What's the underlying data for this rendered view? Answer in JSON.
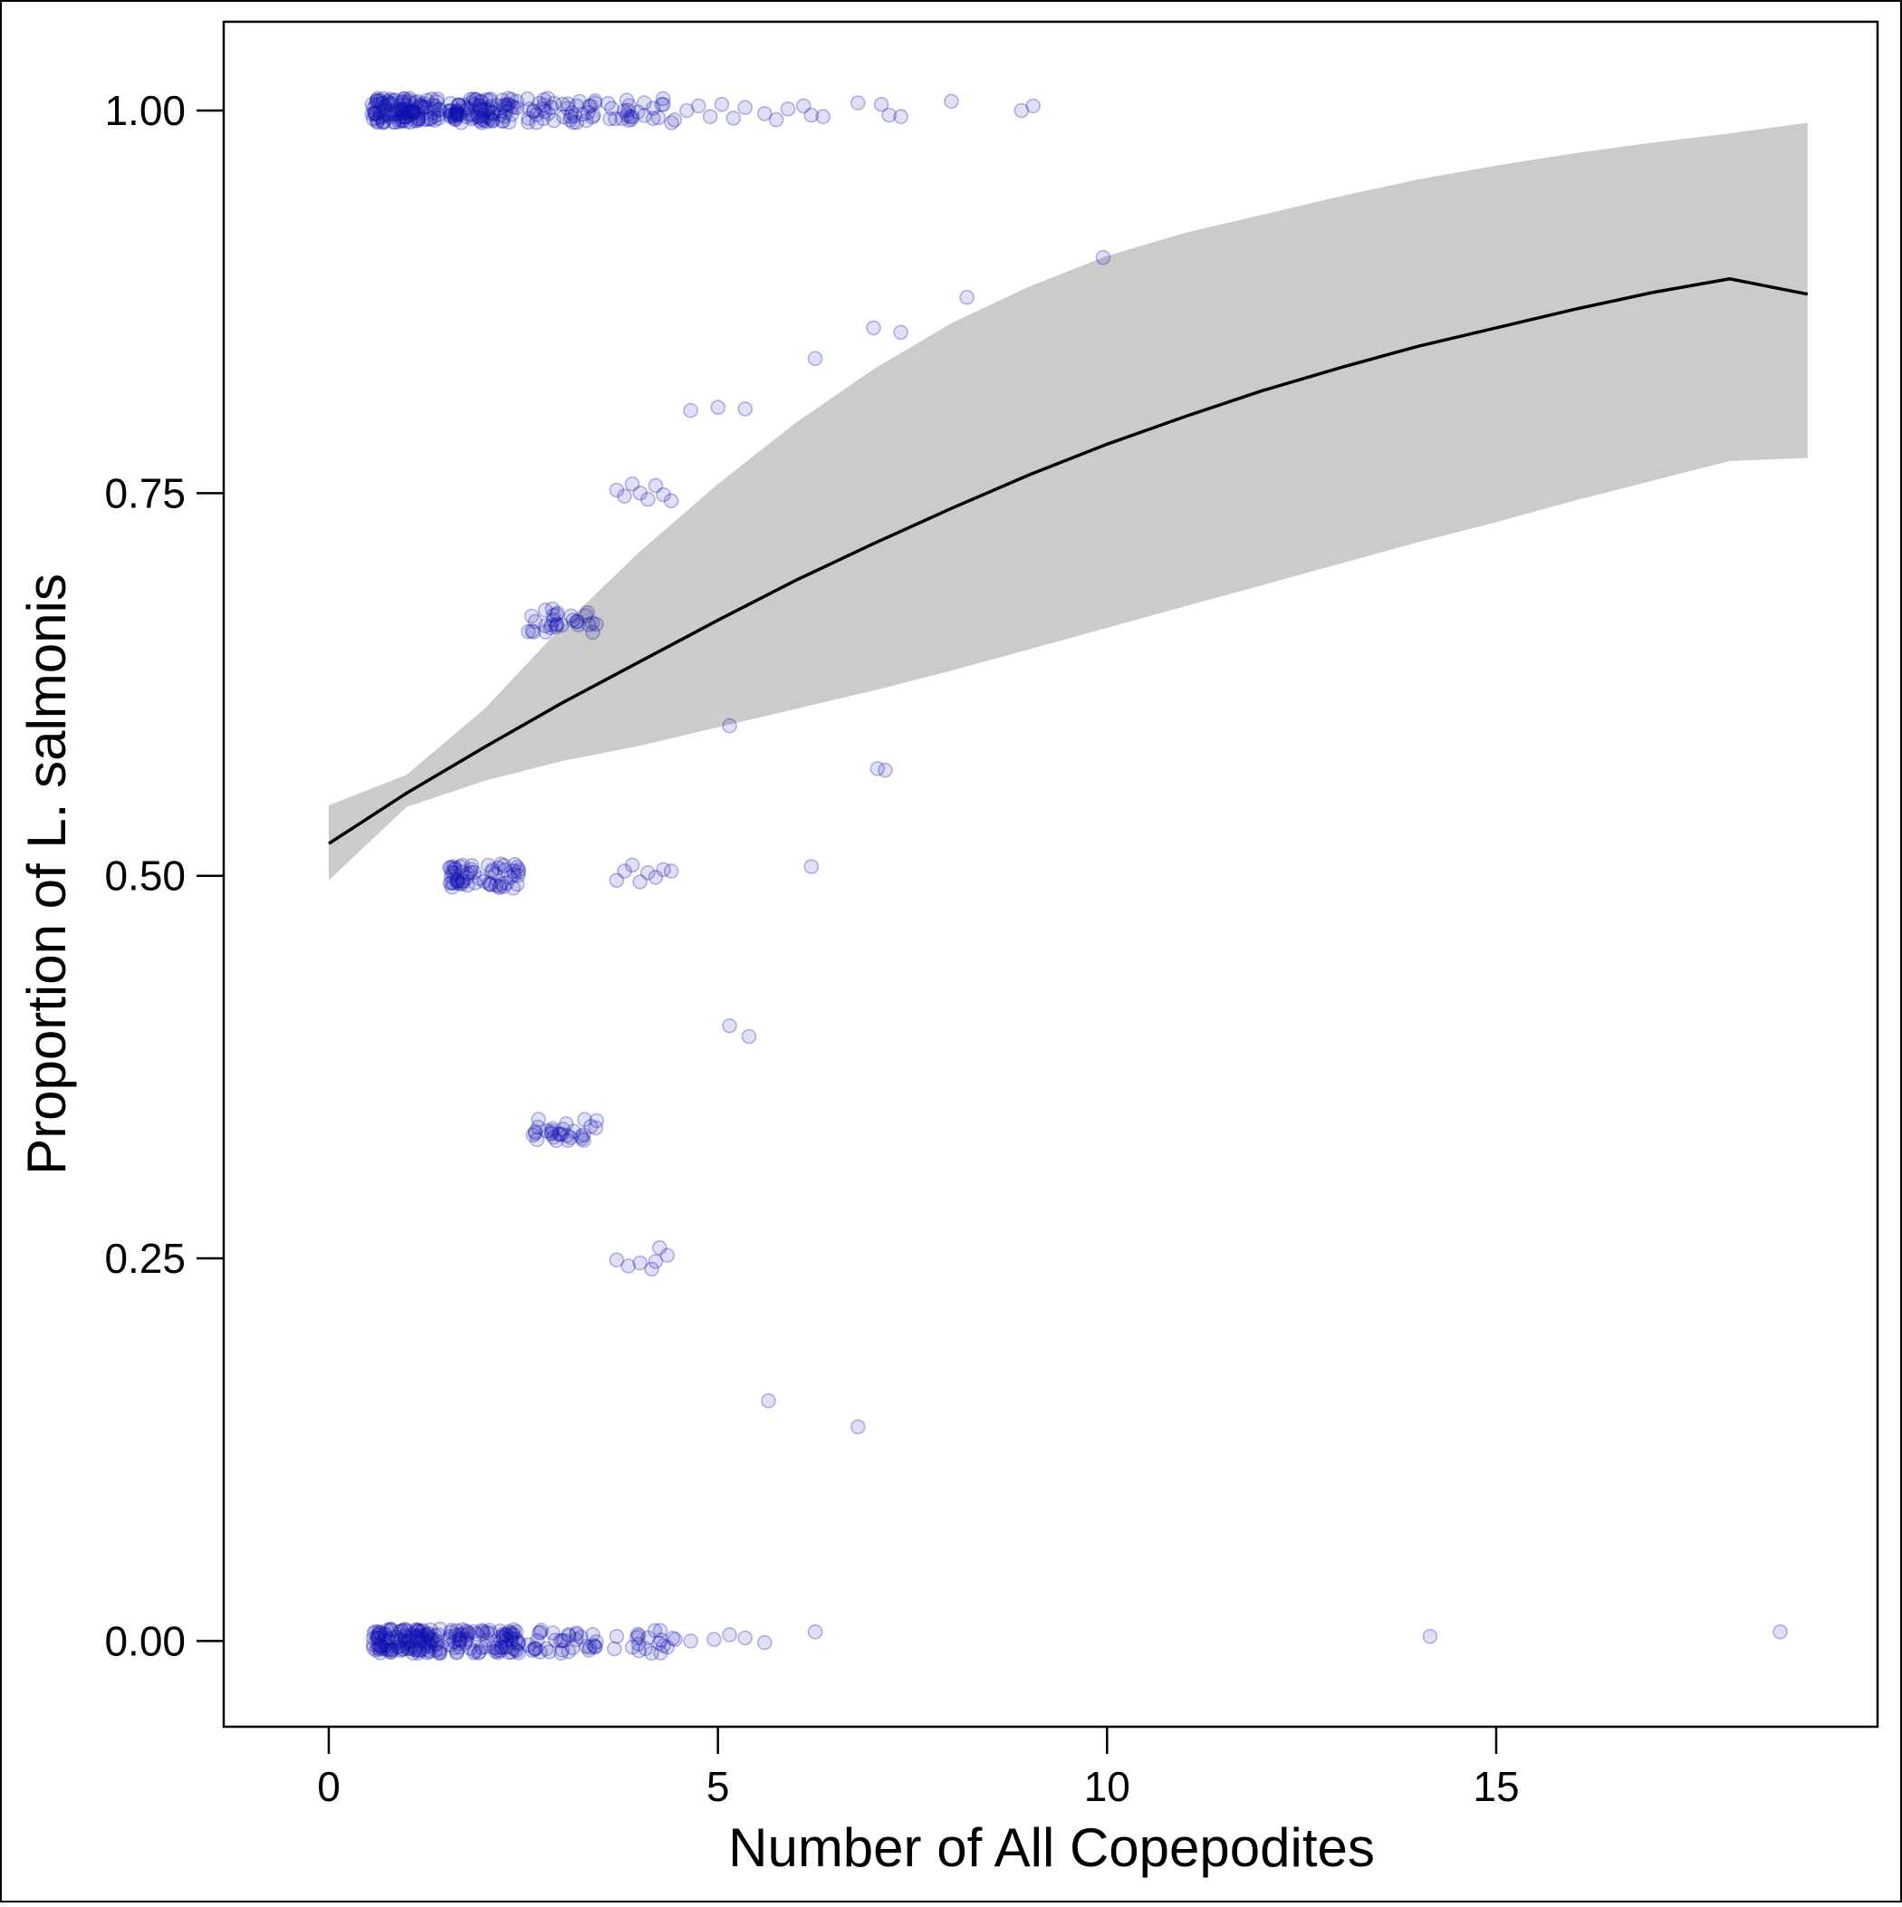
{
  "chart_data": {
    "type": "scatter",
    "title": "",
    "xlabel": "Number of All Copepodites",
    "ylabel": "Proportion of L. salmonis",
    "xlim": [
      -1.35,
      19.9
    ],
    "ylim": [
      -0.056,
      1.058
    ],
    "x_ticks": [
      0,
      5,
      10,
      15
    ],
    "x_tick_labels": [
      "0",
      "5",
      "10",
      "15"
    ],
    "y_ticks": [
      0,
      0.25,
      0.5,
      0.75,
      1
    ],
    "y_tick_labels": [
      "0.00",
      "0.25",
      "0.50",
      "0.75",
      "1.00"
    ],
    "grid": false,
    "legend": "none",
    "point_color": "#1010b0",
    "ribbon_color": "#cbcbcb",
    "line_color": "#000000",
    "fit_line": {
      "x": [
        0,
        1,
        2,
        3,
        4,
        5,
        6,
        7,
        8,
        9,
        10,
        11,
        12,
        13,
        14,
        15,
        16,
        17,
        18,
        19
      ],
      "y": [
        0.521,
        0.554,
        0.584,
        0.613,
        0.64,
        0.667,
        0.693,
        0.717,
        0.74,
        0.762,
        0.782,
        0.8,
        0.817,
        0.832,
        0.846,
        0.858,
        0.87,
        0.881,
        0.89,
        0.88
      ],
      "y_lower": [
        0.497,
        0.545,
        0.562,
        0.575,
        0.585,
        0.597,
        0.609,
        0.621,
        0.634,
        0.648,
        0.662,
        0.676,
        0.69,
        0.704,
        0.718,
        0.731,
        0.745,
        0.758,
        0.771,
        0.773
      ],
      "y_upper": [
        0.546,
        0.566,
        0.609,
        0.663,
        0.712,
        0.756,
        0.796,
        0.831,
        0.861,
        0.885,
        0.905,
        0.92,
        0.932,
        0.944,
        0.955,
        0.964,
        0.972,
        0.979,
        0.985,
        0.992
      ]
    },
    "point_groups": [
      {
        "y": 1.0,
        "x_from": 0.55,
        "x_to": 1.45,
        "count": 120
      },
      {
        "y": 1.0,
        "x_from": 1.55,
        "x_to": 2.45,
        "count": 90
      },
      {
        "y": 1.0,
        "x_from": 2.55,
        "x_to": 3.45,
        "count": 40
      },
      {
        "y": 1.0,
        "x_from": 3.55,
        "x_to": 4.45,
        "count": 25
      },
      {
        "y": 0.0,
        "x_from": 0.55,
        "x_to": 1.45,
        "count": 120
      },
      {
        "y": 0.0,
        "x_from": 1.55,
        "x_to": 2.45,
        "count": 80
      },
      {
        "y": 0.0,
        "x_from": 2.55,
        "x_to": 3.45,
        "count": 35
      },
      {
        "y": 0.0,
        "x_from": 3.55,
        "x_to": 4.45,
        "count": 15
      },
      {
        "y": 0.5,
        "x_from": 1.55,
        "x_to": 2.45,
        "count": 60
      },
      {
        "y": 0.667,
        "x_from": 2.55,
        "x_to": 3.45,
        "count": 30
      },
      {
        "y": 0.333,
        "x_from": 2.55,
        "x_to": 3.45,
        "count": 30
      }
    ],
    "points": [
      {
        "x": 4.6,
        "y": 1.0
      },
      {
        "x": 4.75,
        "y": 1.003
      },
      {
        "x": 4.9,
        "y": 0.996
      },
      {
        "x": 5.05,
        "y": 1.004
      },
      {
        "x": 5.2,
        "y": 0.995
      },
      {
        "x": 5.35,
        "y": 1.002
      },
      {
        "x": 5.6,
        "y": 0.998
      },
      {
        "x": 5.75,
        "y": 0.994
      },
      {
        "x": 5.9,
        "y": 1.001
      },
      {
        "x": 6.1,
        "y": 1.003
      },
      {
        "x": 6.2,
        "y": 0.997
      },
      {
        "x": 6.35,
        "y": 0.996
      },
      {
        "x": 6.8,
        "y": 1.005
      },
      {
        "x": 7.1,
        "y": 1.004
      },
      {
        "x": 7.2,
        "y": 0.997
      },
      {
        "x": 7.35,
        "y": 0.996
      },
      {
        "x": 8.0,
        "y": 1.006
      },
      {
        "x": 8.9,
        "y": 1.0
      },
      {
        "x": 9.05,
        "y": 1.003
      },
      {
        "x": 9.95,
        "y": 0.904
      },
      {
        "x": 8.2,
        "y": 0.878
      },
      {
        "x": 7.0,
        "y": 0.858
      },
      {
        "x": 7.35,
        "y": 0.855
      },
      {
        "x": 6.25,
        "y": 0.838
      },
      {
        "x": 4.65,
        "y": 0.804
      },
      {
        "x": 5.0,
        "y": 0.806
      },
      {
        "x": 5.35,
        "y": 0.805
      },
      {
        "x": 3.7,
        "y": 0.752
      },
      {
        "x": 3.8,
        "y": 0.748
      },
      {
        "x": 3.9,
        "y": 0.756
      },
      {
        "x": 4.0,
        "y": 0.75
      },
      {
        "x": 4.1,
        "y": 0.746
      },
      {
        "x": 4.2,
        "y": 0.755
      },
      {
        "x": 4.3,
        "y": 0.749
      },
      {
        "x": 4.4,
        "y": 0.745
      },
      {
        "x": 5.15,
        "y": 0.598
      },
      {
        "x": 7.05,
        "y": 0.57
      },
      {
        "x": 7.15,
        "y": 0.569
      },
      {
        "x": 3.7,
        "y": 0.497
      },
      {
        "x": 3.8,
        "y": 0.503
      },
      {
        "x": 3.9,
        "y": 0.507
      },
      {
        "x": 4.0,
        "y": 0.496
      },
      {
        "x": 4.1,
        "y": 0.502
      },
      {
        "x": 4.2,
        "y": 0.499
      },
      {
        "x": 4.3,
        "y": 0.504
      },
      {
        "x": 4.4,
        "y": 0.503
      },
      {
        "x": 6.2,
        "y": 0.506
      },
      {
        "x": 5.15,
        "y": 0.402
      },
      {
        "x": 5.4,
        "y": 0.395
      },
      {
        "x": 3.7,
        "y": 0.249
      },
      {
        "x": 3.85,
        "y": 0.245
      },
      {
        "x": 4.0,
        "y": 0.247
      },
      {
        "x": 4.15,
        "y": 0.243
      },
      {
        "x": 4.25,
        "y": 0.257
      },
      {
        "x": 4.35,
        "y": 0.252
      },
      {
        "x": 4.2,
        "y": 0.248
      },
      {
        "x": 5.65,
        "y": 0.157
      },
      {
        "x": 6.8,
        "y": 0.14
      },
      {
        "x": 3.7,
        "y": 0.003
      },
      {
        "x": 3.9,
        "y": -0.004
      },
      {
        "x": 4.1,
        "y": 0.002
      },
      {
        "x": 4.3,
        "y": -0.003
      },
      {
        "x": 4.45,
        "y": 0.001
      },
      {
        "x": 4.65,
        "y": 0.0
      },
      {
        "x": 4.95,
        "y": 0.001
      },
      {
        "x": 5.15,
        "y": 0.004
      },
      {
        "x": 5.35,
        "y": 0.002
      },
      {
        "x": 5.6,
        "y": -0.001
      },
      {
        "x": 6.25,
        "y": 0.006
      },
      {
        "x": 14.15,
        "y": 0.003
      },
      {
        "x": 18.65,
        "y": 0.006
      }
    ]
  }
}
